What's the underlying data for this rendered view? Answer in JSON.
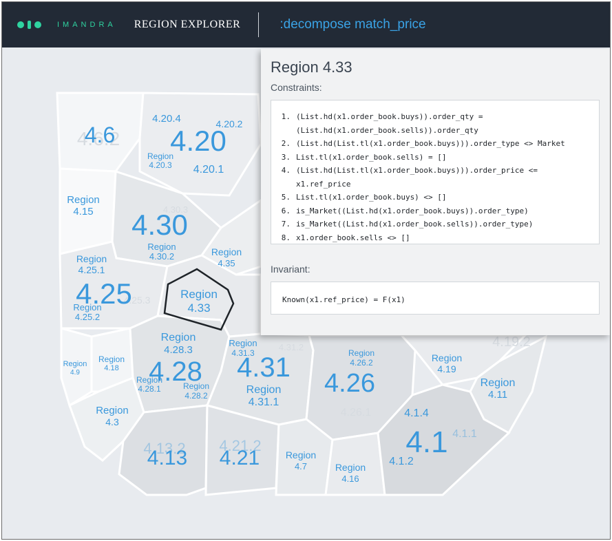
{
  "header": {
    "brand": "IMANDRA",
    "app_title": "REGION EXPLORER",
    "command": ":decompose match_price"
  },
  "colors": {
    "topbar_bg": "#222a36",
    "brand_accent": "#2fd3a0",
    "command_text": "#3aa3e6",
    "region_label": "#3a98dc"
  },
  "regions": {
    "r4_6": "4.6",
    "r4_20": "4.20",
    "r4_20_4": "4.20.4",
    "r4_20_2": "4.20.2",
    "r4_20_1": "4.20.1",
    "r4_20_3_a": "Region",
    "r4_20_3_b": "4.20.3",
    "r4_15_a": "Region",
    "r4_15_b": "4.15",
    "r4_30": "4.30",
    "r4_30_2_a": "Region",
    "r4_30_2_b": "4.30.2",
    "r4_35_a": "Region",
    "r4_35_b": "4.35",
    "r4_25": "4.25",
    "r4_25_1_a": "Region",
    "r4_25_1_b": "4.25.1",
    "r4_25_2_a": "Region",
    "r4_25_2_b": "4.25.2",
    "r4_33_a": "Region",
    "r4_33_b": "4.33",
    "r4_28": "4.28",
    "r4_28_3_a": "Region",
    "r4_28_3_b": "4.28.3",
    "r4_28_1_a": "Region",
    "r4_28_1_b": "4.28.1",
    "r4_28_2_a": "Region",
    "r4_28_2_b": "4.28.2",
    "r4_31": "4.31",
    "r4_31_3_a": "Region",
    "r4_31_3_b": "4.31.3",
    "r4_31_1_a": "Region",
    "r4_31_1_b": "4.31.1",
    "r4_26": "4.26",
    "r4_26_2_a": "Region",
    "r4_26_2_b": "4.26.2",
    "r4_19_a": "Region",
    "r4_19_b": "4.19",
    "r4_11_a": "Region",
    "r4_11_b": "4.11",
    "r4_9_a": "Region",
    "r4_9_b": "4.9",
    "r4_18_a": "Region",
    "r4_18_b": "4.18",
    "r4_3_a": "Region",
    "r4_3_b": "4.3",
    "r4_13": "4.13",
    "r4_13_2": "4.13.2",
    "r4_21": "4.21",
    "r4_21_2": "4.21.2",
    "r4_7_a": "Region",
    "r4_7_b": "4.7",
    "r4_16_a": "Region",
    "r4_16_b": "4.16",
    "r4_1": "4.1",
    "r4_1_4": "4.1.4",
    "r4_1_1": "4.1.1",
    "r4_1_2": "4.1.2"
  },
  "panel": {
    "title": "Region 4.33",
    "constraints_label": "Constraints:",
    "constraints": [
      {
        "num": "1.",
        "lines": [
          "(List.hd(x1.order_book.buys)).order_qty =",
          "(List.hd(x1.order_book.sells)).order_qty"
        ]
      },
      {
        "num": "2.",
        "lines": [
          "(List.hd(List.tl(x1.order_book.buys))).order_type <> Market"
        ]
      },
      {
        "num": "3.",
        "lines": [
          "List.tl(x1.order_book.sells) = []"
        ]
      },
      {
        "num": "4.",
        "lines": [
          "(List.hd(List.tl(x1.order_book.buys))).order_price <=",
          "x1.ref_price"
        ]
      },
      {
        "num": "5.",
        "lines": [
          "List.tl(x1.order_book.buys) <> []"
        ]
      },
      {
        "num": "6.",
        "lines": [
          "is_Market((List.hd(x1.order_book.buys)).order_type)"
        ]
      },
      {
        "num": "7.",
        "lines": [
          "is_Market((List.hd(x1.order_book.sells)).order_type)"
        ]
      },
      {
        "num": "8.",
        "lines": [
          "x1.order_book.sells <> []"
        ]
      }
    ],
    "invariant_label": "Invariant:",
    "invariant": "Known(x1.ref_price) = F(x1)"
  }
}
